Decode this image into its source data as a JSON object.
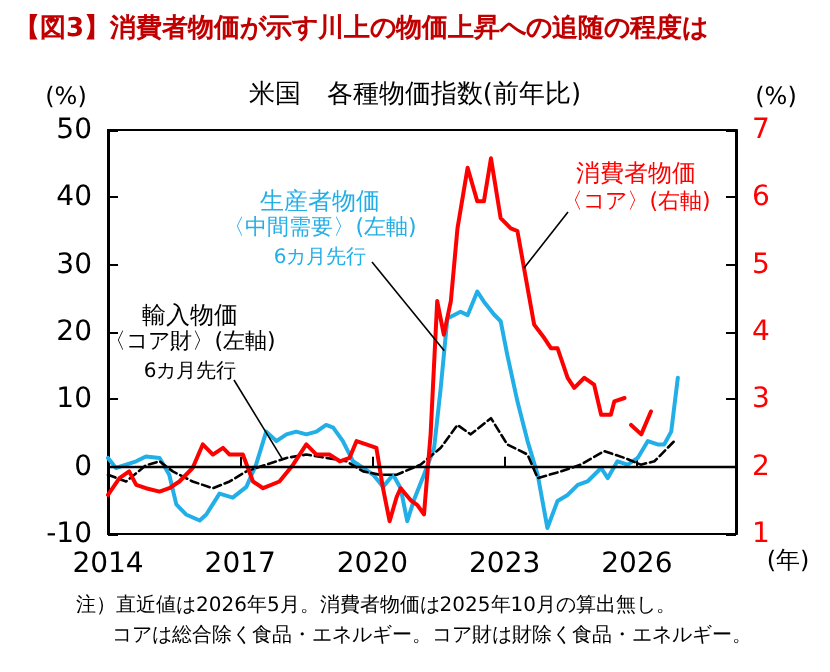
{
  "chart_data": {
    "type": "line",
    "title": "【図3】消費者物価が示す川上の物価上昇への追随の程度は",
    "subtitle": "米国　各種物価指数(前年比)",
    "ylabel": "(%)",
    "y2label": "(%)",
    "xlabel": "(年)",
    "xlim": [
      2014,
      2028.25
    ],
    "xticks": [
      2014,
      2017,
      2020,
      2023,
      2026
    ],
    "ylim": [
      -10,
      50
    ],
    "yticks": [
      -10,
      0,
      10,
      20,
      30,
      40,
      50
    ],
    "y2lim": [
      1,
      7
    ],
    "y2ticks": [
      1,
      2,
      3,
      4,
      5,
      6,
      7
    ],
    "grid": false,
    "legend": false,
    "marker": "none",
    "ref_lines": [
      {
        "axis": "y",
        "value": 0,
        "color": "#000000"
      }
    ],
    "series": [
      {
        "name": "生産者物価",
        "color": "#22aee6",
        "line_style": "solid",
        "x": [
          2014.0,
          2014.18,
          2014.41,
          2014.64,
          2014.86,
          2015.17,
          2015.39,
          2015.55,
          2015.77,
          2016.08,
          2016.23,
          2016.53,
          2016.83,
          2017.14,
          2017.36,
          2017.59,
          2017.82,
          2018.05,
          2018.27,
          2018.5,
          2018.73,
          2018.95,
          2019.11,
          2019.33,
          2019.56,
          2019.79,
          2020.02,
          2020.24,
          2020.47,
          2020.64,
          2020.79,
          2020.94,
          2021.17,
          2021.4,
          2021.55,
          2021.7,
          2022.0,
          2022.16,
          2022.38,
          2022.53,
          2022.76,
          2022.91,
          2023.06,
          2023.29,
          2023.52,
          2023.75,
          2023.97,
          2024.2,
          2024.43,
          2024.66,
          2024.88,
          2025.19,
          2025.34,
          2025.56,
          2025.79,
          2026.02,
          2026.25,
          2026.47,
          2026.62,
          2026.78,
          2026.93
        ],
        "values": [
          1.3,
          -0.2,
          0.3,
          0.8,
          1.5,
          1.3,
          -1.2,
          -5.6,
          -7.1,
          -8,
          -7.1,
          -4,
          -4.6,
          -3,
          0.3,
          5.2,
          3.8,
          4.8,
          5.2,
          4.8,
          5.2,
          6.2,
          5.8,
          3.8,
          0.8,
          -0.2,
          -1.2,
          -3,
          -1.2,
          -3.2,
          -8.1,
          -5,
          -1.2,
          2.8,
          11.7,
          22,
          23,
          22.5,
          26,
          24.5,
          22.6,
          21.6,
          16.6,
          9.7,
          3.8,
          -1.2,
          -9.1,
          -5.1,
          -4.2,
          -2.7,
          -2.2,
          -0.2,
          -1.7,
          0.8,
          0.3,
          1.3,
          3.8,
          3.3,
          3.3,
          5.2,
          13.2
        ]
      },
      {
        "name": "輸入物価",
        "color": "#000000",
        "line_style": "dashed",
        "x": [
          2014.0,
          2014.41,
          2014.86,
          2015.17,
          2015.47,
          2015.92,
          2016.38,
          2016.76,
          2017.14,
          2017.59,
          2018.05,
          2018.5,
          2018.95,
          2019.41,
          2019.79,
          2020.17,
          2020.55,
          2021.09,
          2021.55,
          2021.93,
          2022.23,
          2022.69,
          2023.06,
          2023.52,
          2023.75,
          2024.28,
          2024.73,
          2025.26,
          2025.72,
          2026.09,
          2026.4,
          2026.85
        ],
        "values": [
          -1.2,
          -2.2,
          0.2,
          0.8,
          -0.7,
          -2.2,
          -3.2,
          -2.2,
          -0.7,
          0.3,
          1.3,
          1.8,
          1.3,
          0.8,
          -0.7,
          -1.2,
          -1.2,
          0.3,
          2.8,
          6.2,
          4.8,
          7.2,
          3.3,
          1.8,
          -1.7,
          -0.7,
          0.3,
          2.3,
          1.3,
          0.3,
          0.8,
          3.8
        ]
      },
      {
        "name": "消費者物価",
        "color": "#ff0000",
        "line_style": "solid",
        "axis": "y2",
        "x": [
          2014.0,
          2014.26,
          2014.48,
          2014.64,
          2014.86,
          2015.17,
          2015.39,
          2015.62,
          2015.92,
          2016.15,
          2016.38,
          2016.61,
          2016.76,
          2017.06,
          2017.29,
          2017.52,
          2017.89,
          2018.2,
          2018.5,
          2018.73,
          2019.03,
          2019.26,
          2019.48,
          2019.64,
          2019.86,
          2020.09,
          2020.24,
          2020.39,
          2020.55,
          2020.64,
          2020.87,
          2021.02,
          2021.17,
          2021.32,
          2021.47,
          2021.62,
          2021.78,
          2021.93,
          2022.16,
          2022.38,
          2022.53,
          2022.69,
          2022.91,
          2023.14,
          2023.29,
          2023.44,
          2023.67,
          2023.9,
          2024.05,
          2024.2,
          2024.43,
          2024.58,
          2024.81,
          2025.03,
          2025.19,
          2025.41,
          2025.49,
          2025.72,
          2025.8,
          2025.87,
          2026.1,
          2026.32
        ],
        "values": [
          1.58,
          1.83,
          1.93,
          1.73,
          1.68,
          1.63,
          1.68,
          1.78,
          1.98,
          2.33,
          2.18,
          2.28,
          2.18,
          2.18,
          1.78,
          1.68,
          1.78,
          2.03,
          2.33,
          2.18,
          2.18,
          2.08,
          2.13,
          2.38,
          2.33,
          2.28,
          1.68,
          1.19,
          1.55,
          1.68,
          1.5,
          1.43,
          1.29,
          2.48,
          4.46,
          3.96,
          4.46,
          5.54,
          6.44,
          5.94,
          5.94,
          6.58,
          5.69,
          5.54,
          5.5,
          4.95,
          4.11,
          3.91,
          3.76,
          3.76,
          3.32,
          3.17,
          3.32,
          3.22,
          2.77,
          2.77,
          2.97,
          3.02,
          null,
          2.62,
          2.48,
          2.82
        ]
      }
    ],
    "annotations": [
      "〈中間需要〉(左軸)",
      {
        "text": "6カ月先行",
        "x": 2021.63,
        "y": 17.2
      },
      "〈コア財〉(左軸)",
      {
        "text": "6カ月先行",
        "x": 2017.95,
        "y": 1.2
      },
      {
        "text": "〈コア〉(右軸)",
        "x": 2023.44,
        "y": 29.5
      },
      "注）直近値は2026年5月。消費者物価は2025年10月の算出無し。",
      "コアは総合除く食品・エネルギー。コア財は財除く食品・エネルギー。"
    ]
  }
}
